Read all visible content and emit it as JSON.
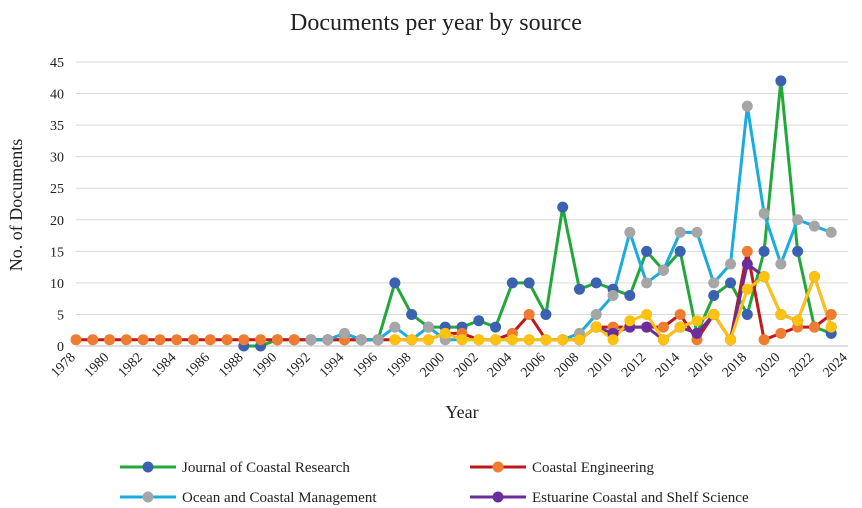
{
  "chart_data": {
    "type": "line",
    "title": "Documents per year by source",
    "xlabel": "Year",
    "ylabel": "No. of  Documents",
    "xlim": [
      1978,
      2024
    ],
    "ylim": [
      0,
      45
    ],
    "y_ticks": [
      0,
      5,
      10,
      15,
      20,
      25,
      30,
      35,
      40,
      45
    ],
    "x_ticks": [
      1978,
      1980,
      1982,
      1984,
      1986,
      1988,
      1990,
      1992,
      1994,
      1996,
      1998,
      2000,
      2002,
      2004,
      2006,
      2008,
      2010,
      2012,
      2014,
      2016,
      2018,
      2020,
      2022,
      2024
    ],
    "grid": "horizontal",
    "legend_position": "bottom",
    "series": [
      {
        "name": "Journal of Coastal Research",
        "line_color": "#22a83a",
        "marker_color": "#3a62b0",
        "points": [
          [
            1988,
            0
          ],
          [
            1989,
            0
          ],
          [
            1990,
            1
          ],
          [
            1991,
            1
          ],
          [
            1992,
            1
          ],
          [
            1993,
            1
          ],
          [
            1994,
            1
          ],
          [
            1995,
            1
          ],
          [
            1996,
            1
          ],
          [
            1997,
            10
          ],
          [
            1998,
            5
          ],
          [
            1999,
            3
          ],
          [
            2000,
            3
          ],
          [
            2001,
            3
          ],
          [
            2002,
            4
          ],
          [
            2003,
            3
          ],
          [
            2004,
            10
          ],
          [
            2005,
            10
          ],
          [
            2006,
            5
          ],
          [
            2007,
            22
          ],
          [
            2008,
            9
          ],
          [
            2009,
            10
          ],
          [
            2010,
            9
          ],
          [
            2011,
            8
          ],
          [
            2012,
            15
          ],
          [
            2013,
            12
          ],
          [
            2014,
            15
          ],
          [
            2015,
            2
          ],
          [
            2016,
            8
          ],
          [
            2017,
            10
          ],
          [
            2018,
            5
          ],
          [
            2019,
            15
          ],
          [
            2020,
            42
          ],
          [
            2021,
            15
          ],
          [
            2022,
            3
          ],
          [
            2023,
            2
          ]
        ]
      },
      {
        "name": "Coastal Engineering",
        "line_color": "#c0171d",
        "marker_color": "#ee7d31",
        "points": [
          [
            1978,
            1
          ],
          [
            1979,
            1
          ],
          [
            1980,
            1
          ],
          [
            1981,
            1
          ],
          [
            1982,
            1
          ],
          [
            1983,
            1
          ],
          [
            1984,
            1
          ],
          [
            1985,
            1
          ],
          [
            1986,
            1
          ],
          [
            1987,
            1
          ],
          [
            1988,
            1
          ],
          [
            1989,
            1
          ],
          [
            1990,
            1
          ],
          [
            1991,
            1
          ],
          [
            1992,
            1
          ],
          [
            1993,
            1
          ],
          [
            1994,
            1
          ],
          [
            1995,
            1
          ],
          [
            1996,
            1
          ],
          [
            1997,
            1
          ],
          [
            1998,
            1
          ],
          [
            1999,
            1
          ],
          [
            2000,
            2
          ],
          [
            2001,
            2
          ],
          [
            2002,
            1
          ],
          [
            2003,
            1
          ],
          [
            2004,
            2
          ],
          [
            2005,
            5
          ],
          [
            2006,
            1
          ],
          [
            2007,
            1
          ],
          [
            2008,
            1
          ],
          [
            2009,
            3
          ],
          [
            2010,
            3
          ],
          [
            2011,
            3
          ],
          [
            2012,
            3
          ],
          [
            2013,
            3
          ],
          [
            2014,
            5
          ],
          [
            2015,
            1
          ],
          [
            2016,
            5
          ],
          [
            2017,
            1
          ],
          [
            2018,
            15
          ],
          [
            2019,
            1
          ],
          [
            2020,
            2
          ],
          [
            2021,
            3
          ],
          [
            2022,
            3
          ],
          [
            2023,
            5
          ]
        ]
      },
      {
        "name": "Ocean and  Coastal Management",
        "line_color": "#1aace0",
        "marker_color": "#a6a6a6",
        "points": [
          [
            1992,
            1
          ],
          [
            1993,
            1
          ],
          [
            1994,
            2
          ],
          [
            1995,
            1
          ],
          [
            1996,
            1
          ],
          [
            1997,
            3
          ],
          [
            1998,
            1
          ],
          [
            1999,
            3
          ],
          [
            2000,
            1
          ],
          [
            2001,
            1
          ],
          [
            2002,
            1
          ],
          [
            2003,
            1
          ],
          [
            2004,
            1
          ],
          [
            2005,
            1
          ],
          [
            2006,
            1
          ],
          [
            2007,
            1
          ],
          [
            2008,
            2
          ],
          [
            2009,
            5
          ],
          [
            2010,
            8
          ],
          [
            2011,
            18
          ],
          [
            2012,
            10
          ],
          [
            2013,
            12
          ],
          [
            2014,
            18
          ],
          [
            2015,
            18
          ],
          [
            2016,
            10
          ],
          [
            2017,
            13
          ],
          [
            2018,
            38
          ],
          [
            2019,
            21
          ],
          [
            2020,
            13
          ],
          [
            2021,
            20
          ],
          [
            2022,
            19
          ],
          [
            2023,
            18
          ]
        ]
      },
      {
        "name": "Estuarine Coastal and Shelf Science",
        "line_color": "#6a2d9c",
        "marker_color": "#6a2d9c",
        "points": [
          [
            2008,
            1
          ],
          [
            2009,
            3
          ],
          [
            2010,
            2
          ],
          [
            2011,
            3
          ],
          [
            2012,
            3
          ],
          [
            2013,
            1
          ],
          [
            2014,
            3
          ],
          [
            2015,
            2
          ],
          [
            2016,
            5
          ],
          [
            2017,
            1
          ],
          [
            2018,
            13
          ],
          [
            2019,
            11
          ],
          [
            2020,
            5
          ],
          [
            2021,
            4
          ],
          [
            2022,
            11
          ],
          [
            2023,
            3
          ]
        ]
      },
      {
        "name": "",
        "line_color": "#ffc20e",
        "marker_color": "#ffc20e",
        "points": [
          [
            1997,
            1
          ],
          [
            1998,
            1
          ],
          [
            1999,
            1
          ],
          [
            2000,
            2
          ],
          [
            2001,
            1
          ],
          [
            2002,
            1
          ],
          [
            2003,
            1
          ],
          [
            2004,
            1
          ],
          [
            2005,
            1
          ],
          [
            2006,
            1
          ],
          [
            2007,
            1
          ],
          [
            2008,
            1
          ],
          [
            2009,
            3
          ],
          [
            2010,
            1
          ],
          [
            2011,
            4
          ],
          [
            2012,
            5
          ],
          [
            2013,
            1
          ],
          [
            2014,
            3
          ],
          [
            2015,
            4
          ],
          [
            2016,
            5
          ],
          [
            2017,
            1
          ],
          [
            2018,
            9
          ],
          [
            2019,
            11
          ],
          [
            2020,
            5
          ],
          [
            2021,
            4
          ],
          [
            2022,
            11
          ],
          [
            2023,
            3
          ]
        ]
      }
    ],
    "legend": [
      {
        "label": "Journal of Coastal Research",
        "series_index": 0
      },
      {
        "label": "Coastal Engineering",
        "series_index": 1
      },
      {
        "label": "Ocean and  Coastal Management",
        "series_index": 2
      },
      {
        "label": "Estuarine Coastal and Shelf Science",
        "series_index": 3
      }
    ]
  }
}
